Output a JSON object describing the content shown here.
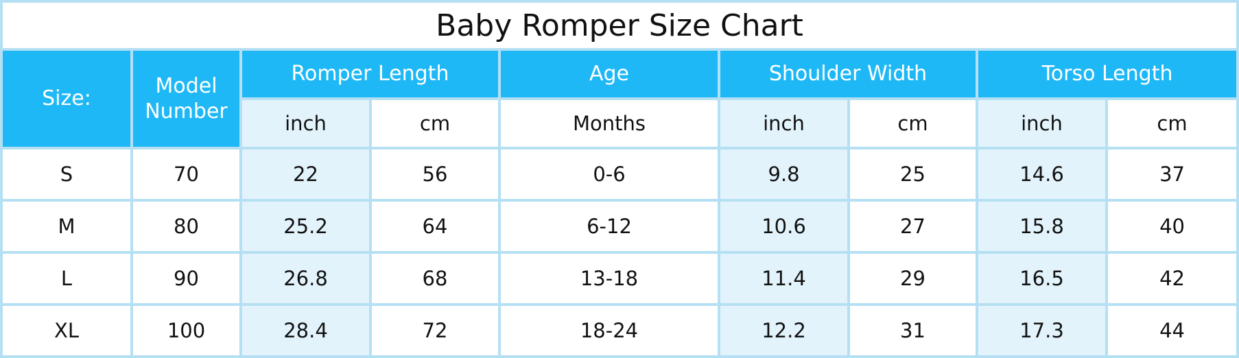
{
  "title": "Baby Romper Size Chart",
  "header": {
    "top": [
      "Size:",
      "Model Number",
      "Romper Length",
      "Age",
      "Shoulder Width",
      "Torso Length"
    ],
    "units": [
      "inch",
      "cm",
      "Months",
      "inch",
      "cm",
      "inch",
      "cm"
    ]
  },
  "table": {
    "rows": [
      [
        "S",
        70,
        22,
        56,
        "0-6",
        9.8,
        25,
        14.6,
        37
      ],
      [
        "M",
        80,
        25.2,
        64,
        "6-12",
        10.6,
        27,
        15.8,
        40
      ],
      [
        "L",
        90,
        26.8,
        68,
        "13-18",
        11.4,
        29,
        16.5,
        42
      ],
      [
        "XL",
        100,
        28.4,
        72,
        "18-24",
        12.2,
        31,
        17.3,
        44
      ]
    ]
  }
}
